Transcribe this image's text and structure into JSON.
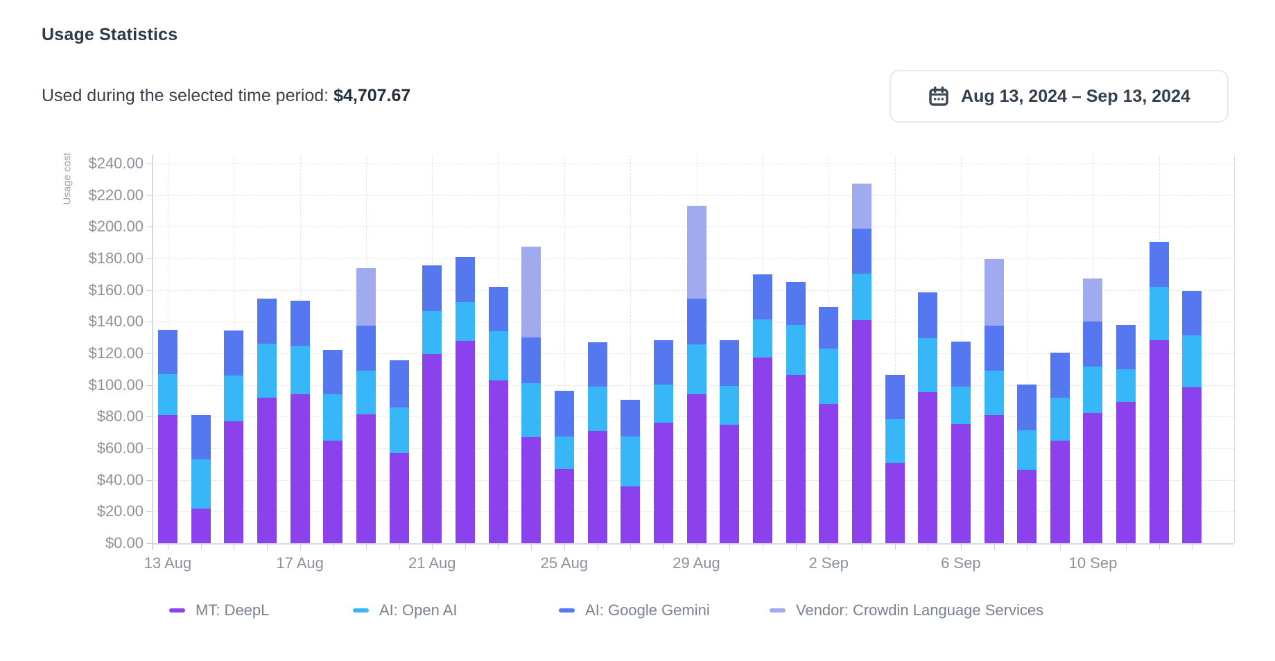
{
  "header": {
    "title": "Usage Statistics",
    "subtitle_label": "Used during the selected time period:",
    "subtitle_value": "$4,707.67",
    "date_range": "Aug 13, 2024 – Sep 13, 2024"
  },
  "chart_data": {
    "type": "bar",
    "stacked": true,
    "ylabel": "Usage cost",
    "ylim": [
      0,
      240
    ],
    "ytick_step": 20,
    "ytick_labels": [
      "$0.00",
      "$20.00",
      "$40.00",
      "$60.00",
      "$80.00",
      "$100.00",
      "$120.00",
      "$140.00",
      "$160.00",
      "$180.00",
      "$200.00",
      "$220.00",
      "$240.00"
    ],
    "grid": "dashed",
    "legend_position": "bottom",
    "categories": [
      "13 Aug",
      "14 Aug",
      "15 Aug",
      "16 Aug",
      "17 Aug",
      "18 Aug",
      "19 Aug",
      "20 Aug",
      "21 Aug",
      "22 Aug",
      "23 Aug",
      "24 Aug",
      "25 Aug",
      "26 Aug",
      "27 Aug",
      "28 Aug",
      "29 Aug",
      "30 Aug",
      "31 Aug",
      "1 Sep",
      "2 Sep",
      "3 Sep",
      "4 Sep",
      "5 Sep",
      "6 Sep",
      "7 Sep",
      "8 Sep",
      "9 Sep",
      "10 Sep",
      "11 Sep",
      "12 Sep",
      "13 Sep"
    ],
    "xtick_labels_shown": [
      "13 Aug",
      "17 Aug",
      "21 Aug",
      "25 Aug",
      "29 Aug",
      "2 Sep",
      "6 Sep",
      "10 Sep"
    ],
    "series": [
      {
        "name": "MT: DeepL",
        "color": "#8b41ec",
        "values": [
          81,
          22,
          77,
          92,
          94,
          65,
          81.5,
          57,
          119.5,
          128,
          103,
          67,
          47,
          71,
          36,
          76,
          94,
          75,
          117.5,
          106.5,
          88,
          141,
          51,
          95.5,
          75.5,
          81,
          46.5,
          65,
          82.5,
          89.5,
          128.5,
          98.5
        ]
      },
      {
        "name": "AI: Open AI",
        "color": "#38b7f8",
        "values": [
          26,
          31,
          29,
          34,
          31,
          29,
          27.5,
          29,
          27,
          24.5,
          31,
          34,
          20.5,
          28,
          31.5,
          24.5,
          31.5,
          24.5,
          24,
          31.5,
          35,
          29.5,
          27.5,
          34,
          23.5,
          28,
          25,
          27,
          29,
          20.5,
          33.5,
          33
        ]
      },
      {
        "name": "AI: Google Gemini",
        "color": "#5577f0",
        "values": [
          28,
          28,
          28.5,
          28.5,
          28.5,
          28,
          28.5,
          29.5,
          29,
          28.5,
          28,
          29,
          29,
          28,
          23,
          28,
          29,
          29,
          28.5,
          27,
          26.5,
          28.5,
          28,
          29,
          28.5,
          28.5,
          29,
          28.5,
          28.5,
          28,
          28.5,
          28
        ]
      },
      {
        "name": "Vendor: Crowdin Language Services",
        "color": "#a0aaef",
        "values": [
          0,
          0,
          0,
          0,
          0,
          0,
          36.5,
          0,
          0,
          0,
          0,
          57.5,
          0,
          0,
          0,
          0,
          59,
          0,
          0,
          0,
          0,
          28.5,
          0,
          0,
          0,
          42,
          0,
          0,
          27.5,
          0,
          0,
          0
        ]
      }
    ]
  }
}
